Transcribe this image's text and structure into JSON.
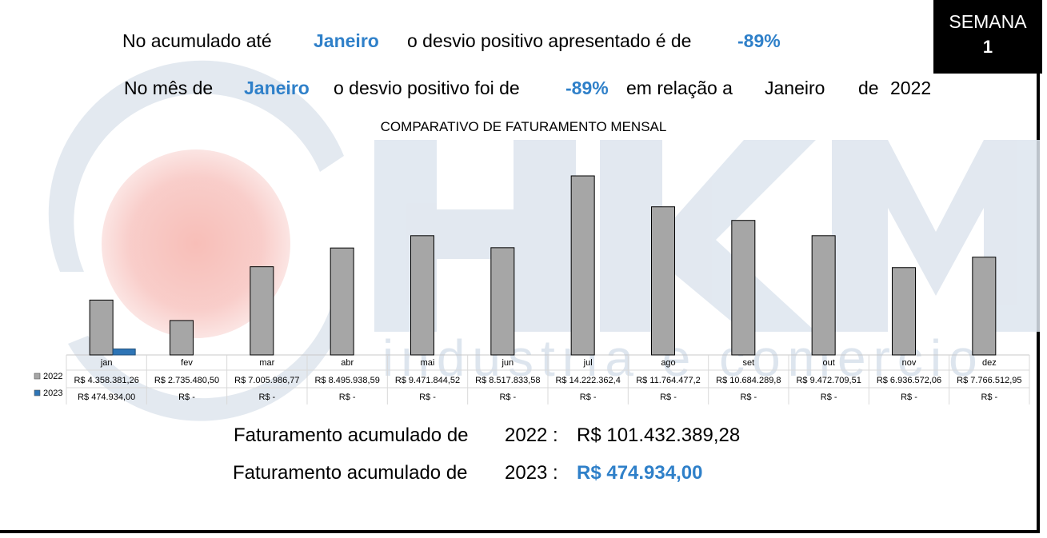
{
  "badge": {
    "line1": "SEMANA",
    "line2": "1"
  },
  "header": {
    "line1": {
      "prefix": "No acumulado até",
      "month": "Janeiro",
      "middle": "o desvio positivo apresentado é de",
      "percent": "-89%"
    },
    "line2": {
      "prefix": "No mês de",
      "month": "Janeiro",
      "middle": "o desvio positivo foi de",
      "percent": "-89%",
      "relation": "em relação a",
      "ref_month": "Janeiro",
      "de": "de",
      "ref_year": "2022"
    }
  },
  "watermark": {
    "text": "HKM",
    "subtext": "industria e comercio",
    "circle_color": "#f5c0c0",
    "letters_color": "#d6e0ea"
  },
  "chart_data": {
    "type": "bar",
    "title": "COMPARATIVO DE FATURAMENTO MENSAL",
    "categories": [
      "jan",
      "fev",
      "mar",
      "abr",
      "mai",
      "jun",
      "jul",
      "ago",
      "set",
      "out",
      "nov",
      "dez"
    ],
    "series": [
      {
        "name": "2022",
        "color": "#a6a6a6",
        "values": [
          4358381.26,
          2735480.5,
          7005986.77,
          8495938.59,
          9471844.52,
          8517833.58,
          14222362.4,
          11764477.2,
          10684289.8,
          9472709.51,
          6936572.06,
          7766512.95
        ],
        "labels": [
          "R$ 4.358.381,26",
          "R$ 2.735.480,50",
          "R$ 7.005.986,77",
          "R$ 8.495.938,59",
          "R$ 9.471.844,52",
          "R$ 8.517.833,58",
          "R$ 14.222.362,4",
          "R$ 11.764.477,2",
          "R$ 10.684.289,8",
          "R$ 9.472.709,51",
          "R$ 6.936.572,06",
          "R$ 7.766.512,95"
        ]
      },
      {
        "name": "2023",
        "color": "#2e75b6",
        "values": [
          474934.0,
          0,
          0,
          0,
          0,
          0,
          0,
          0,
          0,
          0,
          0,
          0
        ],
        "labels": [
          "R$ 474.934,00",
          "R$ -",
          "R$ -",
          "R$ -",
          "R$ -",
          "R$ -",
          "R$ -",
          "R$ -",
          "R$ -",
          "R$ -",
          "R$ -",
          "R$ -"
        ]
      }
    ],
    "ylim": [
      0,
      14500000
    ],
    "grid": false,
    "legend": "table-left"
  },
  "summary": {
    "row1": {
      "label": "Faturamento acumulado de",
      "year": "2022 :",
      "value": "R$ 101.432.389,28"
    },
    "row2": {
      "label": "Faturamento acumulado de",
      "year": "2023 :",
      "value": "R$ 474.934,00"
    }
  }
}
